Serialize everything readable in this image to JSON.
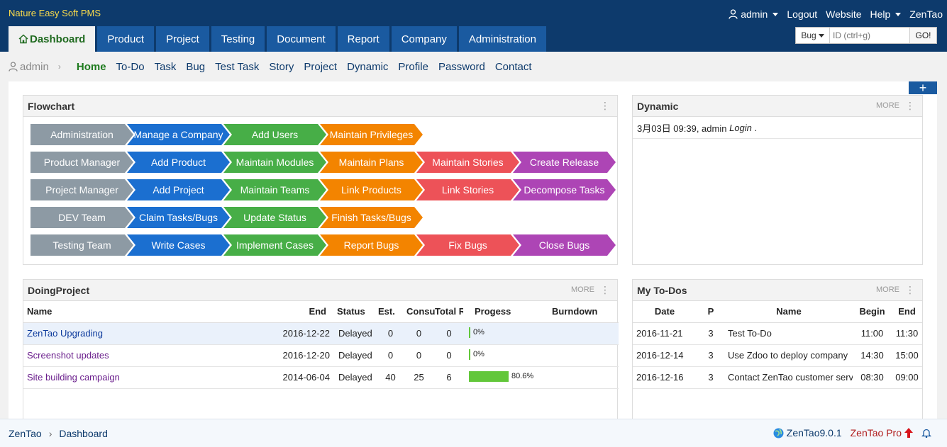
{
  "app": {
    "brand": "Nature Easy Soft PMS"
  },
  "topbar": {
    "user": "admin",
    "logout": "Logout",
    "website": "Website",
    "help": "Help",
    "zentao": "ZenTao"
  },
  "mainnav": {
    "tabs": [
      {
        "label": "Dashboard"
      },
      {
        "label": "Product"
      },
      {
        "label": "Project"
      },
      {
        "label": "Testing"
      },
      {
        "label": "Document"
      },
      {
        "label": "Report"
      },
      {
        "label": "Company"
      },
      {
        "label": "Administration"
      }
    ]
  },
  "search": {
    "type": "Bug",
    "placeholder": "ID (ctrl+g)",
    "go": "GO!"
  },
  "subnav": {
    "user": "admin",
    "items": [
      "Home",
      "To-Do",
      "Task",
      "Bug",
      "Test Task",
      "Story",
      "Project",
      "Dynamic",
      "Profile",
      "Password",
      "Contact"
    ]
  },
  "add_block": "+",
  "flowchart": {
    "title": "Flowchart",
    "rows": [
      [
        "Administration",
        "Manage a Company",
        "Add Users",
        "Maintain Privileges"
      ],
      [
        "Product Manager",
        "Add Product",
        "Maintain Modules",
        "Maintain Plans",
        "Maintain Stories",
        "Create Release"
      ],
      [
        "Project Manager",
        "Add Project",
        "Maintain Teams",
        "Link Products",
        "Link Stories",
        "Decompose Tasks"
      ],
      [
        "DEV Team",
        "Claim Tasks/Bugs",
        "Update Status",
        "Finish Tasks/Bugs"
      ],
      [
        "Testing Team",
        "Write Cases",
        "Implement Cases",
        "Report Bugs",
        "Fix Bugs",
        "Close Bugs"
      ]
    ],
    "colors": [
      "#8d9aa4",
      "#1b6fd0",
      "#47ae47",
      "#f38400",
      "#ed5258",
      "#ad45b5"
    ]
  },
  "dynamic": {
    "title": "Dynamic",
    "more": "MORE",
    "entries": [
      {
        "time": "3月03日 09:39, admin",
        "action": "Login",
        "tail": "."
      }
    ]
  },
  "doingproject": {
    "title": "DoingProject",
    "more": "MORE",
    "headers": [
      "Name",
      "End",
      "Status",
      "Est.",
      "Consu",
      "Total R",
      "Progess",
      "Burndown"
    ],
    "rows": [
      {
        "name": "ZenTao Upgrading",
        "end": "2016-12-22",
        "status": "Delayed",
        "est": "0",
        "consumed": "0",
        "left": "0",
        "progress": 0,
        "progress_label": "0%"
      },
      {
        "name": "Screenshot updates",
        "end": "2016-12-20",
        "status": "Delayed",
        "est": "0",
        "consumed": "0",
        "left": "0",
        "progress": 0,
        "progress_label": "0%"
      },
      {
        "name": "Site building campaign",
        "end": "2014-06-04",
        "status": "Delayed",
        "est": "40",
        "consumed": "25",
        "left": "6",
        "progress": 80.6,
        "progress_label": "80.6%"
      }
    ]
  },
  "todos": {
    "title": "My To-Dos",
    "more": "MORE",
    "headers": [
      "Date",
      "P",
      "Name",
      "Begin",
      "End"
    ],
    "rows": [
      {
        "date": "2016-11-21",
        "p": "3",
        "name": "Test To-Do",
        "begin": "11:00",
        "end": "11:30"
      },
      {
        "date": "2016-12-14",
        "p": "3",
        "name": "Use Zdoo to deploy company",
        "begin": "14:30",
        "end": "15:00"
      },
      {
        "date": "2016-12-16",
        "p": "3",
        "name": "Contact ZenTao customer service",
        "begin": "08:30",
        "end": "09:00"
      }
    ]
  },
  "footer": {
    "crumb_home": "ZenTao",
    "crumb_current": "Dashboard",
    "version": "ZenTao9.0.1",
    "pro": "ZenTao Pro"
  }
}
